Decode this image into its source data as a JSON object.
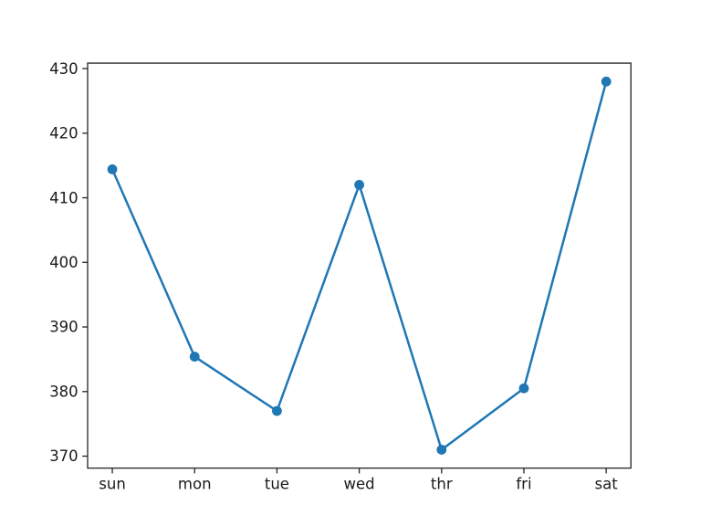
{
  "chart_data": {
    "type": "line",
    "categories": [
      "sun",
      "mon",
      "tue",
      "wed",
      "thr",
      "fri",
      "sat"
    ],
    "values": [
      414.4,
      385.4,
      377.0,
      412.0,
      371.0,
      380.5,
      428.0
    ],
    "yticks": [
      370,
      380,
      390,
      400,
      410,
      420,
      430
    ],
    "ylim": [
      368.15,
      430.85
    ],
    "xlim": [
      -0.3,
      6.3
    ],
    "grid": false,
    "legend": null,
    "marker": "circle",
    "colors": {
      "line": "#1f77b4",
      "marker": "#1f77b4",
      "spine": "#2b2b2b",
      "tick": "#2b2b2b",
      "text": "#1a1a1a",
      "background": "#ffffff"
    }
  }
}
